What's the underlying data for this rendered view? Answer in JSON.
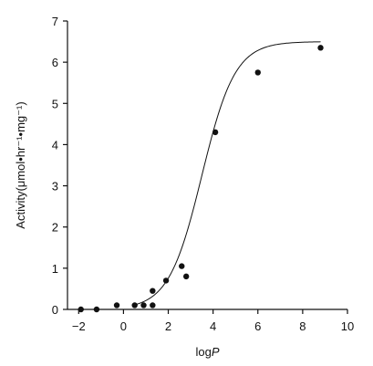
{
  "chart_data": {
    "type": "scatter",
    "xlabel": "logP",
    "xlabel_parts": {
      "base": "log",
      "italic": "P"
    },
    "ylabel": "Activity(μmol•hr⁻¹•mg⁻¹)",
    "xlim": [
      -2.5,
      10
    ],
    "ylim": [
      0,
      7
    ],
    "xticks": [
      -2,
      0,
      2,
      4,
      6,
      8,
      10
    ],
    "yticks": [
      0,
      1,
      2,
      3,
      4,
      5,
      6,
      7
    ],
    "xtick_labels": [
      "−2",
      "0",
      "2",
      "4",
      "6",
      "8",
      "10"
    ],
    "ytick_labels": [
      "0",
      "1",
      "2",
      "3",
      "4",
      "5",
      "6",
      "7"
    ],
    "grid": false,
    "series": [
      {
        "points": [
          {
            "x": -1.9,
            "y": 0.0
          },
          {
            "x": -1.2,
            "y": 0.0
          },
          {
            "x": -0.3,
            "y": 0.1
          },
          {
            "x": 0.5,
            "y": 0.1
          },
          {
            "x": 0.9,
            "y": 0.1
          },
          {
            "x": 1.3,
            "y": 0.1
          },
          {
            "x": 1.3,
            "y": 0.45
          },
          {
            "x": 1.9,
            "y": 0.7
          },
          {
            "x": 2.6,
            "y": 1.05
          },
          {
            "x": 2.8,
            "y": 0.8
          },
          {
            "x": 4.1,
            "y": 4.3
          },
          {
            "x": 6.0,
            "y": 5.75
          },
          {
            "x": 8.8,
            "y": 6.35
          }
        ]
      }
    ],
    "fit_curve": {
      "type": "sigmoid",
      "x_range": [
        0.5,
        8.8
      ],
      "bottom": 0.0,
      "top": 6.5,
      "midpoint": 3.5,
      "slope": 1.35
    }
  }
}
